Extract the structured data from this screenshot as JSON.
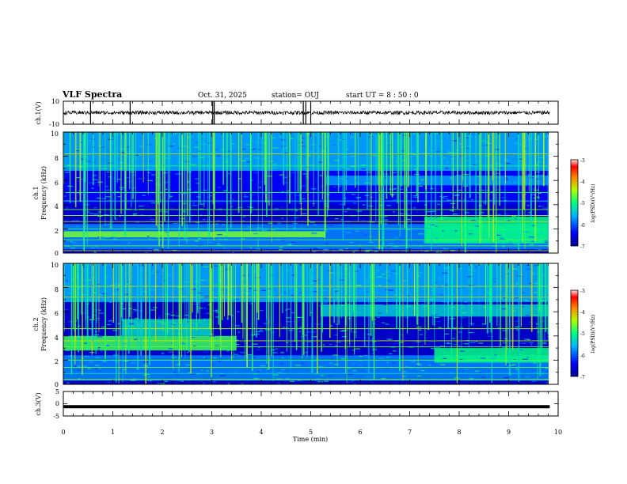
{
  "header": {
    "title": "VLF Spectra",
    "date": "Oct. 31, 2025",
    "station": "station= OUJ",
    "start_time": "start  UT =  8 : 50 : 0"
  },
  "chart_data": {
    "type": "heatmap",
    "time_axis": {
      "label": "Time  (min)",
      "range": [
        0,
        10
      ],
      "ticks": [
        "0",
        "1",
        "2",
        "3",
        "4",
        "5",
        "6",
        "7",
        "8",
        "9",
        "10"
      ],
      "data_end_min": 9.83
    },
    "panels": [
      {
        "id": "ch1-waveform",
        "type": "line",
        "ylabel": "ch.1(V)",
        "ylim": [
          -10,
          10
        ],
        "tick_labels": [
          "10",
          "-10"
        ],
        "trace_level_v": 0,
        "spike_times_min": [
          0.55,
          1.35,
          3.02,
          3.05,
          4.85,
          4.9,
          5.0
        ]
      },
      {
        "id": "ch1-spectrogram",
        "type": "heatmap",
        "ylabel_lines": [
          "ch.1",
          "Frequency  (kHz)"
        ],
        "ylim_khz": [
          0,
          10
        ],
        "tick_labels": [
          "0",
          "2",
          "4",
          "6",
          "8",
          "10"
        ],
        "colorbar": {
          "label": "log(PSD)(V²/Hz)",
          "range": [
            -7,
            -3
          ],
          "tick_labels": [
            "-3",
            "-4",
            "-5",
            "-6",
            "-7"
          ]
        },
        "regions": [
          {
            "t": [
              0,
              9.83
            ],
            "f_khz": [
              0,
              10
            ],
            "log_psd": -6.7
          },
          {
            "t": [
              0,
              9.83
            ],
            "f_khz": [
              6.8,
              10
            ],
            "log_psd": -5.6
          },
          {
            "t": [
              0,
              9.83
            ],
            "f_khz": [
              4,
              6.8
            ],
            "log_psd": -6.4
          },
          {
            "t": [
              0,
              9.83
            ],
            "f_khz": [
              0.3,
              2.4
            ],
            "log_psd": -5.8
          },
          {
            "t": [
              0,
              5.3
            ],
            "f_khz": [
              1.3,
              1.8
            ],
            "log_psd": -4.6
          },
          {
            "t": [
              5.3,
              9.83
            ],
            "f_khz": [
              5.6,
              6.4
            ],
            "log_psd": -5.7
          },
          {
            "t": [
              7.3,
              9.83
            ],
            "f_khz": [
              0.8,
              3.0
            ],
            "log_psd": -5.0
          }
        ],
        "tone_lines_khz": [
          0.2,
          0.6,
          1.1,
          2.0,
          2.6,
          3.1,
          3.6,
          4.3,
          5.0,
          7.2,
          8.2
        ]
      },
      {
        "id": "ch2-spectrogram",
        "type": "heatmap",
        "ylabel_lines": [
          "ch.2",
          "Frequency  (kHz)"
        ],
        "ylim_khz": [
          0,
          10
        ],
        "tick_labels": [
          "0",
          "2",
          "4",
          "6",
          "8",
          "10"
        ],
        "colorbar": {
          "label": "log(PSD)(V²/Hz)",
          "range": [
            -7,
            -3
          ],
          "tick_labels": [
            "-3",
            "-4",
            "-5",
            "-6",
            "-7"
          ]
        },
        "regions": [
          {
            "t": [
              0,
              9.83
            ],
            "f_khz": [
              0,
              10
            ],
            "log_psd": -6.7
          },
          {
            "t": [
              0,
              9.83
            ],
            "f_khz": [
              6.8,
              10
            ],
            "log_psd": -5.6
          },
          {
            "t": [
              0,
              9.83
            ],
            "f_khz": [
              0.3,
              2.4
            ],
            "log_psd": -5.8
          },
          {
            "t": [
              0,
              3.5
            ],
            "f_khz": [
              2.8,
              4.0
            ],
            "log_psd": -4.8
          },
          {
            "t": [
              1.2,
              3.0
            ],
            "f_khz": [
              4.0,
              5.4
            ],
            "log_psd": -5.3
          },
          {
            "t": [
              5.2,
              9.83
            ],
            "f_khz": [
              5.6,
              6.6
            ],
            "log_psd": -5.4
          },
          {
            "t": [
              7.5,
              9.83
            ],
            "f_khz": [
              1.8,
              3.0
            ],
            "log_psd": -5.0
          }
        ],
        "tone_lines_khz": [
          0.4,
          0.9,
          1.4,
          2.0,
          3.1,
          3.6,
          4.6,
          7.2,
          8.1
        ]
      },
      {
        "id": "ch3-waveform",
        "type": "line",
        "ylabel": "ch.3(V)",
        "ylim": [
          -5,
          5
        ],
        "tick_labels": [
          "5",
          "0",
          "-5"
        ],
        "trace_level_v": -1.2
      }
    ]
  }
}
